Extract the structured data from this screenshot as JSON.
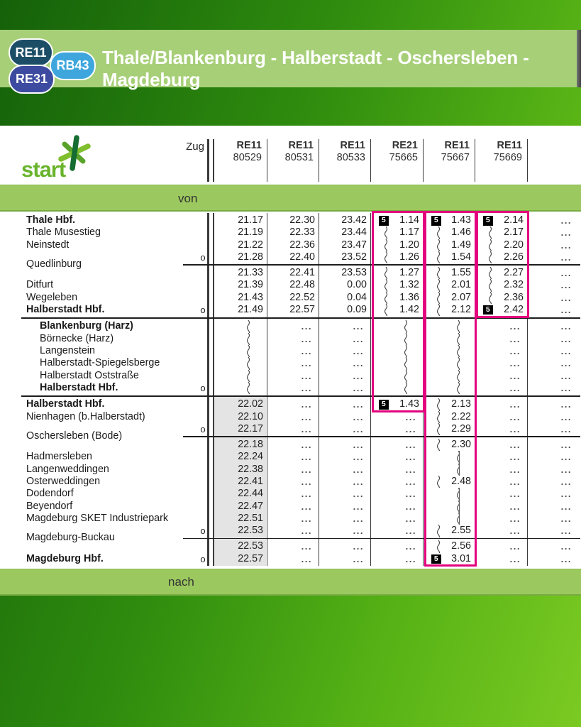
{
  "header": {
    "title": "Thale/Blankenburg - Halberstadt - Oschersleben - Magdeburg",
    "band_color": "#a7cf78",
    "badges": [
      {
        "label": "RE11",
        "color": "#1b4e66"
      },
      {
        "label": "RB43",
        "color": "#3ea6dc"
      },
      {
        "label": "RE31",
        "color": "#3c4b9f"
      }
    ]
  },
  "logo": {
    "text": "start",
    "text_color": "#69b42c"
  },
  "table": {
    "zug_label": "Zug",
    "von_label": "von",
    "nach_label": "nach",
    "band_color": "#9cc95f",
    "highlight_color": "#e3017e",
    "gray_column_color": "#e4e4e4",
    "trains": [
      {
        "line": "RE11",
        "number": "80529"
      },
      {
        "line": "RE11",
        "number": "80531"
      },
      {
        "line": "RE11",
        "number": "80533"
      },
      {
        "line": "RE21",
        "number": "75665"
      },
      {
        "line": "RE11",
        "number": "75667"
      },
      {
        "line": "RE11",
        "number": "75669"
      }
    ],
    "highlights": [
      {
        "col": 3,
        "from_row": 0,
        "to_row": 14
      },
      {
        "col": 4,
        "from_row": 0,
        "to_row": 26
      },
      {
        "col": 5,
        "from_row": 0,
        "to_row": 7
      }
    ],
    "rows": [
      {
        "station": "Thale Hbf.",
        "bold": true,
        "cells": [
          {
            "time": "21.17"
          },
          {
            "time": "22.30"
          },
          {
            "time": "23.42"
          },
          {
            "note": "5",
            "time": "1.14"
          },
          {
            "note": "5",
            "time": "1.43"
          },
          {
            "note": "5",
            "time": "2.14"
          },
          {
            "dots": true
          }
        ]
      },
      {
        "station": "Thale Musestieg",
        "cells": [
          {
            "time": "21.19"
          },
          {
            "time": "22.33"
          },
          {
            "time": "23.44"
          },
          {
            "wavy": true,
            "time": "1.17"
          },
          {
            "wavy": true,
            "time": "1.46"
          },
          {
            "wavy": true,
            "time": "2.17"
          },
          {
            "dots": true
          }
        ]
      },
      {
        "station": "Neinstedt",
        "cells": [
          {
            "time": "21.22"
          },
          {
            "time": "22.36"
          },
          {
            "time": "23.47"
          },
          {
            "wavy": true,
            "time": "1.20"
          },
          {
            "wavy": true,
            "time": "1.49"
          },
          {
            "wavy": true,
            "time": "2.20"
          },
          {
            "dots": true
          }
        ]
      },
      {
        "station": "Quedlinburg",
        "span": true,
        "o": true,
        "divider_after": "anab",
        "cells": [
          {
            "time": "21.28"
          },
          {
            "time": "22.40"
          },
          {
            "time": "23.52"
          },
          {
            "wavy": true,
            "time": "1.26"
          },
          {
            "wavy": true,
            "time": "1.54"
          },
          {
            "wavy": true,
            "time": "2.26"
          },
          {
            "dots": true
          }
        ]
      },
      {
        "station": "",
        "cells": [
          {
            "time": "21.33"
          },
          {
            "time": "22.41"
          },
          {
            "time": "23.53"
          },
          {
            "wavy": true,
            "time": "1.27"
          },
          {
            "wavy": true,
            "time": "1.55"
          },
          {
            "wavy": true,
            "time": "2.27"
          },
          {
            "dots": true
          }
        ]
      },
      {
        "station": "Ditfurt",
        "cells": [
          {
            "time": "21.39"
          },
          {
            "time": "22.48"
          },
          {
            "time": "0.00"
          },
          {
            "wavy": true,
            "time": "1.32"
          },
          {
            "wavy": true,
            "time": "2.01"
          },
          {
            "wavy": true,
            "time": "2.32"
          },
          {
            "dots": true
          }
        ]
      },
      {
        "station": "Wegeleben",
        "cells": [
          {
            "time": "21.43"
          },
          {
            "time": "22.52"
          },
          {
            "time": "0.04"
          },
          {
            "wavy": true,
            "time": "1.36"
          },
          {
            "wavy": true,
            "time": "2.07"
          },
          {
            "wavy": true,
            "time": "2.36"
          },
          {
            "dots": true
          }
        ]
      },
      {
        "station": "Halberstadt Hbf.",
        "bold": true,
        "o": true,
        "divider_after": "section",
        "cells": [
          {
            "time": "21.49"
          },
          {
            "time": "22.57"
          },
          {
            "time": "0.09"
          },
          {
            "wavy": true,
            "time": "1.42"
          },
          {
            "wavy": true,
            "time": "2.12"
          },
          {
            "note": "5",
            "time": "2.42"
          },
          {
            "dots": true
          }
        ]
      },
      {
        "station": "Blankenburg (Harz)",
        "bold": true,
        "indent": true,
        "cells": [
          {
            "wavy": true
          },
          {
            "dots": true
          },
          {
            "dots": true
          },
          {
            "wavy": true
          },
          {
            "wavy": true
          },
          {
            "dots": true
          },
          {
            "dots": true
          }
        ]
      },
      {
        "station": "Börnecke (Harz)",
        "indent": true,
        "cells": [
          {
            "wavy": true
          },
          {
            "dots": true
          },
          {
            "dots": true
          },
          {
            "wavy": true
          },
          {
            "wavy": true
          },
          {
            "dots": true
          },
          {
            "dots": true
          }
        ]
      },
      {
        "station": "Langenstein",
        "indent": true,
        "cells": [
          {
            "wavy": true
          },
          {
            "dots": true
          },
          {
            "dots": true
          },
          {
            "wavy": true
          },
          {
            "wavy": true
          },
          {
            "dots": true
          },
          {
            "dots": true
          }
        ]
      },
      {
        "station": "Halberstadt-Spiegelsberge",
        "indent": true,
        "cells": [
          {
            "wavy": true
          },
          {
            "dots": true
          },
          {
            "dots": true
          },
          {
            "wavy": true
          },
          {
            "wavy": true
          },
          {
            "dots": true
          },
          {
            "dots": true
          }
        ]
      },
      {
        "station": "Halberstadt Oststraße",
        "indent": true,
        "cells": [
          {
            "wavy": true
          },
          {
            "dots": true
          },
          {
            "dots": true
          },
          {
            "wavy": true
          },
          {
            "wavy": true
          },
          {
            "dots": true
          },
          {
            "dots": true
          }
        ]
      },
      {
        "station": "Halberstadt Hbf.",
        "bold": true,
        "indent": true,
        "o": true,
        "divider_after": "section",
        "cells": [
          {
            "wavy": true
          },
          {
            "dots": true
          },
          {
            "dots": true
          },
          {
            "wavy": true
          },
          {
            "wavy": true
          },
          {
            "dots": true
          },
          {
            "dots": true
          }
        ]
      },
      {
        "station": "Halberstadt Hbf.",
        "bold": true,
        "gray": true,
        "cells": [
          {
            "time": "22.02"
          },
          {
            "dots": true
          },
          {
            "dots": true
          },
          {
            "note": "5",
            "time": "1.43"
          },
          {
            "wavy": true,
            "time": "2.13"
          },
          {
            "dots": true
          },
          {
            "dots": true
          }
        ]
      },
      {
        "station": "Nienhagen (b.Halberstadt)",
        "gray": true,
        "cells": [
          {
            "time": "22.10"
          },
          {
            "dots": true
          },
          {
            "dots": true
          },
          {
            "dots": true
          },
          {
            "wavy": true,
            "time": "2.22"
          },
          {
            "dots": true
          },
          {
            "dots": true
          }
        ]
      },
      {
        "station": "Oschersleben (Bode)",
        "span": true,
        "o": true,
        "gray": true,
        "divider_after": "anab",
        "cells": [
          {
            "time": "22.17"
          },
          {
            "dots": true
          },
          {
            "dots": true
          },
          {
            "dots": true
          },
          {
            "wavy": true,
            "time": "2.29"
          },
          {
            "dots": true
          },
          {
            "dots": true
          }
        ]
      },
      {
        "station": "",
        "gray": true,
        "cells": [
          {
            "time": "22.18"
          },
          {
            "dots": true
          },
          {
            "dots": true
          },
          {
            "dots": true
          },
          {
            "wavy": true,
            "time": "2.30"
          },
          {
            "dots": true
          },
          {
            "dots": true
          }
        ]
      },
      {
        "station": "Hadmersleben",
        "gray": true,
        "cells": [
          {
            "time": "22.24"
          },
          {
            "dots": true
          },
          {
            "dots": true
          },
          {
            "dots": true
          },
          {
            "wavy": true,
            "skip": true
          },
          {
            "dots": true
          },
          {
            "dots": true
          }
        ]
      },
      {
        "station": "Langenweddingen",
        "gray": true,
        "cells": [
          {
            "time": "22.38"
          },
          {
            "dots": true
          },
          {
            "dots": true
          },
          {
            "dots": true
          },
          {
            "wavy": true,
            "skip": true
          },
          {
            "dots": true
          },
          {
            "dots": true
          }
        ]
      },
      {
        "station": "Osterweddingen",
        "gray": true,
        "cells": [
          {
            "time": "22.41"
          },
          {
            "dots": true
          },
          {
            "dots": true
          },
          {
            "dots": true
          },
          {
            "wavy": true,
            "time": "2.48"
          },
          {
            "dots": true
          },
          {
            "dots": true
          }
        ]
      },
      {
        "station": "Dodendorf",
        "gray": true,
        "cells": [
          {
            "time": "22.44"
          },
          {
            "dots": true
          },
          {
            "dots": true
          },
          {
            "dots": true
          },
          {
            "wavy": true,
            "skip": true
          },
          {
            "dots": true
          },
          {
            "dots": true
          }
        ]
      },
      {
        "station": "Beyendorf",
        "gray": true,
        "cells": [
          {
            "time": "22.47"
          },
          {
            "dots": true
          },
          {
            "dots": true
          },
          {
            "dots": true
          },
          {
            "wavy": true,
            "skip": true
          },
          {
            "dots": true
          },
          {
            "dots": true
          }
        ]
      },
      {
        "station": "Magdeburg SKET Industriepark",
        "gray": true,
        "cells": [
          {
            "time": "22.51"
          },
          {
            "dots": true
          },
          {
            "dots": true
          },
          {
            "dots": true
          },
          {
            "wavy": true,
            "skip": true
          },
          {
            "dots": true
          },
          {
            "dots": true
          }
        ]
      },
      {
        "station": "Magdeburg-Buckau",
        "span": true,
        "o": true,
        "gray": true,
        "divider_after": "anab",
        "cells": [
          {
            "time": "22.53"
          },
          {
            "dots": true
          },
          {
            "dots": true
          },
          {
            "dots": true
          },
          {
            "wavy": true,
            "time": "2.55"
          },
          {
            "dots": true
          },
          {
            "dots": true
          }
        ]
      },
      {
        "station": "",
        "gray": true,
        "cells": [
          {
            "time": "22.53"
          },
          {
            "dots": true
          },
          {
            "dots": true
          },
          {
            "dots": true
          },
          {
            "wavy": true,
            "time": "2.56"
          },
          {
            "dots": true
          },
          {
            "dots": true
          }
        ]
      },
      {
        "station": "Magdeburg Hbf.",
        "bold": true,
        "o": true,
        "gray": true,
        "cells": [
          {
            "time": "22.57"
          },
          {
            "dots": true
          },
          {
            "dots": true
          },
          {
            "dots": true
          },
          {
            "note": "5",
            "time": "3.01"
          },
          {
            "dots": true
          },
          {
            "dots": true
          }
        ]
      }
    ]
  }
}
